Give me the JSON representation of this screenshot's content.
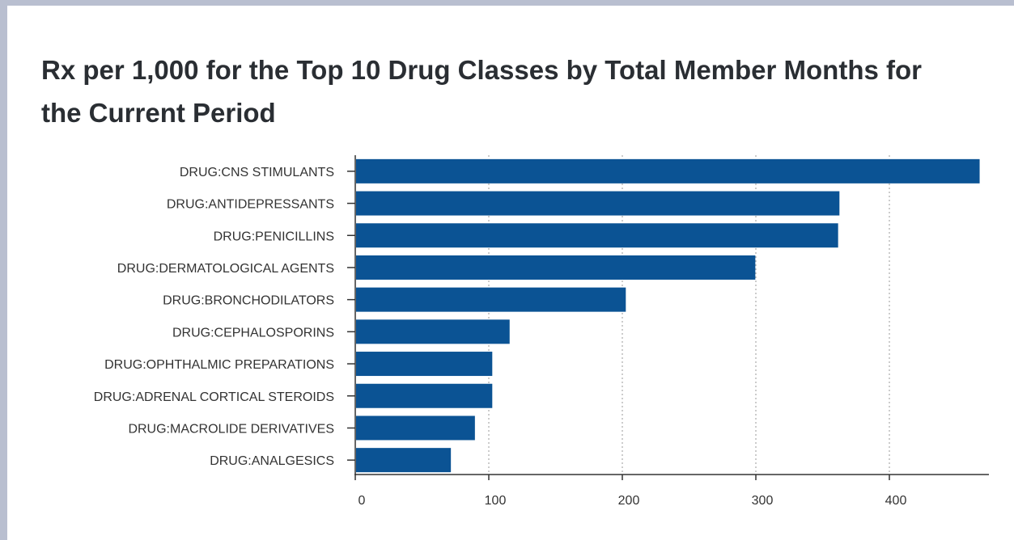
{
  "chart_data": {
    "type": "bar",
    "orientation": "horizontal",
    "title": "Rx per 1,000 for the Top 10 Drug Classes by Total Member Months for the Current Period",
    "xlabel": "",
    "ylabel": "",
    "categories": [
      "DRUG:CNS STIMULANTS",
      "DRUG:ANTIDEPRESSANTS",
      "DRUG:PENICILLINS",
      "DRUG:DERMATOLOGICAL AGENTS",
      "DRUG:BRONCHODILATORS",
      "DRUG:CEPHALOSPORINS",
      "DRUG:OPHTHALMIC PREPARATIONS",
      "DRUG:ADRENAL CORTICAL STEROIDS",
      "DRUG:MACROLIDE DERIVATIVES",
      "DRUG:ANALGESICS"
    ],
    "values": [
      467,
      362,
      361,
      299,
      202,
      115,
      102,
      102,
      89,
      71
    ],
    "xlim": [
      0,
      475
    ],
    "xticks": [
      0,
      100,
      200,
      300,
      400
    ],
    "grid": "vertical dotted",
    "bar_color": "#0b5394",
    "legend": "none"
  }
}
